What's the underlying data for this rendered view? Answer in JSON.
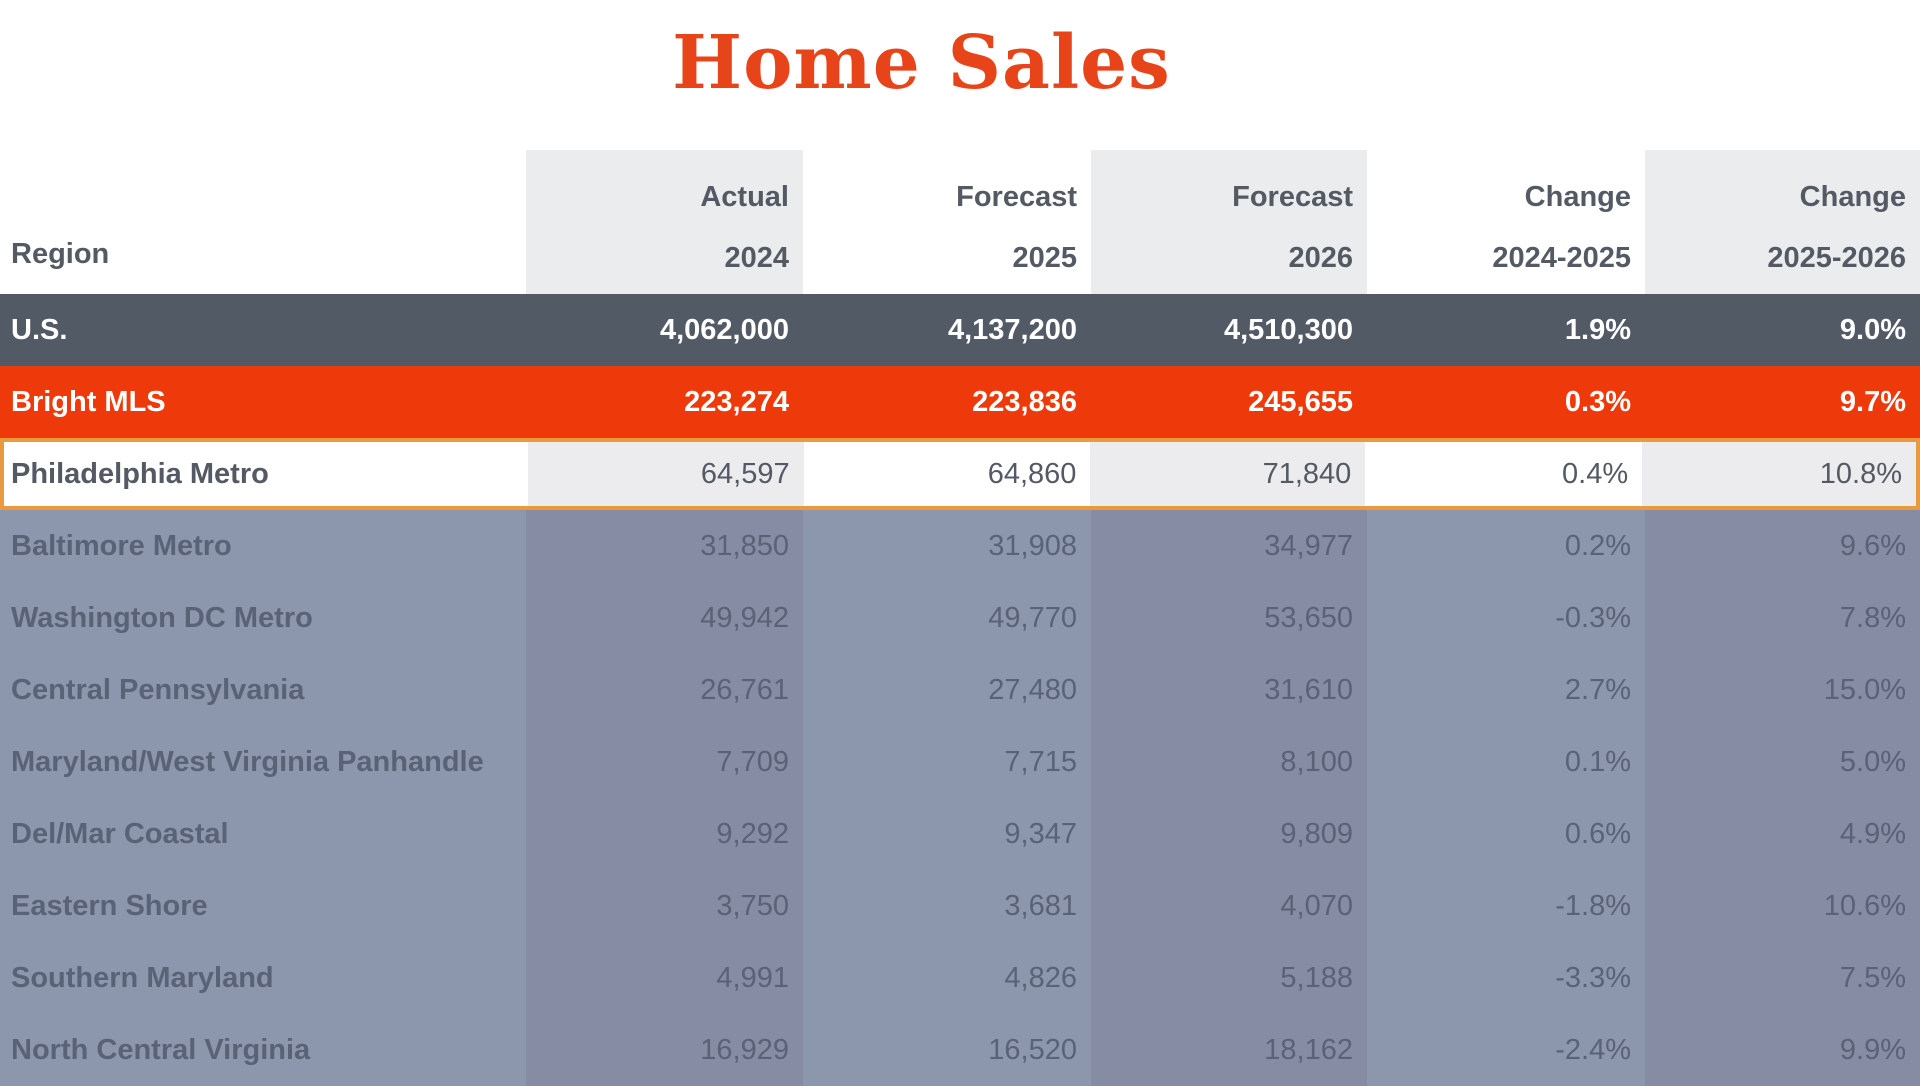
{
  "page": {
    "title": "Home Sales"
  },
  "chart_data": {
    "type": "table",
    "title": "Home Sales",
    "columns": [
      {
        "line1": "",
        "line2": "Region"
      },
      {
        "line1": "Actual",
        "line2": "2024"
      },
      {
        "line1": "Forecast",
        "line2": "2025"
      },
      {
        "line1": "Forecast",
        "line2": "2026"
      },
      {
        "line1": "Change",
        "line2": "2024-2025"
      },
      {
        "line1": "Change",
        "line2": "2025-2026"
      }
    ],
    "rows": [
      {
        "region": "U.S.",
        "actual_2024": "4,062,000",
        "forecast_2025": "4,137,200",
        "forecast_2026": "4,510,300",
        "change_2024_2025": "1.9%",
        "change_2025_2026": "9.0%"
      },
      {
        "region": "Bright MLS",
        "actual_2024": "223,274",
        "forecast_2025": "223,836",
        "forecast_2026": "245,655",
        "change_2024_2025": "0.3%",
        "change_2025_2026": "9.7%"
      },
      {
        "region": "Philadelphia Metro",
        "actual_2024": "64,597",
        "forecast_2025": "64,860",
        "forecast_2026": "71,840",
        "change_2024_2025": "0.4%",
        "change_2025_2026": "10.8%",
        "highlighted": true
      },
      {
        "region": "Baltimore Metro",
        "actual_2024": "31,850",
        "forecast_2025": "31,908",
        "forecast_2026": "34,977",
        "change_2024_2025": "0.2%",
        "change_2025_2026": "9.6%"
      },
      {
        "region": "Washington DC Metro",
        "actual_2024": "49,942",
        "forecast_2025": "49,770",
        "forecast_2026": "53,650",
        "change_2024_2025": "-0.3%",
        "change_2025_2026": "7.8%"
      },
      {
        "region": "Central Pennsylvania",
        "actual_2024": "26,761",
        "forecast_2025": "27,480",
        "forecast_2026": "31,610",
        "change_2024_2025": "2.7%",
        "change_2025_2026": "15.0%"
      },
      {
        "region": "Maryland/West Virginia Panhandle",
        "actual_2024": "7,709",
        "forecast_2025": "7,715",
        "forecast_2026": "8,100",
        "change_2024_2025": "0.1%",
        "change_2025_2026": "5.0%"
      },
      {
        "region": "Del/Mar Coastal",
        "actual_2024": "9,292",
        "forecast_2025": "9,347",
        "forecast_2026": "9,809",
        "change_2024_2025": "0.6%",
        "change_2025_2026": "4.9%"
      },
      {
        "region": "Eastern Shore",
        "actual_2024": "3,750",
        "forecast_2025": "3,681",
        "forecast_2026": "4,070",
        "change_2024_2025": "-1.8%",
        "change_2025_2026": "10.6%"
      },
      {
        "region": "Southern Maryland",
        "actual_2024": "4,991",
        "forecast_2025": "4,826",
        "forecast_2026": "5,188",
        "change_2024_2025": "-3.3%",
        "change_2025_2026": "7.5%"
      },
      {
        "region": "North Central Virginia",
        "actual_2024": "16,929",
        "forecast_2025": "16,520",
        "forecast_2026": "18,162",
        "change_2024_2025": "-2.4%",
        "change_2025_2026": "9.9%"
      }
    ]
  },
  "colors": {
    "title": "#e8441a",
    "us_row": "#525a66",
    "bright_mls_row": "#ee3a0a",
    "highlight_border": "#ea9a3e",
    "dimmed_rows": "#8c96ad"
  }
}
